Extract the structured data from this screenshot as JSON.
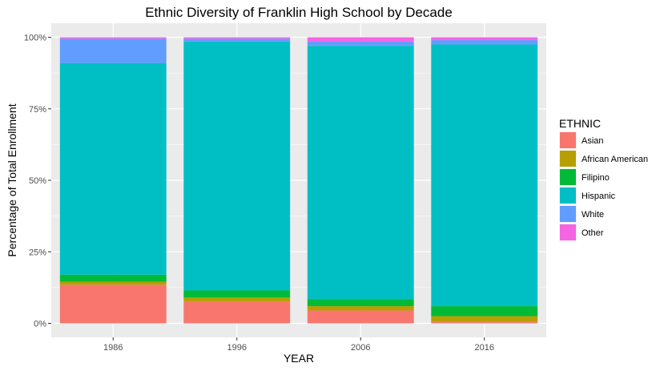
{
  "chart_data": {
    "type": "bar",
    "stacked": true,
    "title": "Ethnic Diversity of Franklin High School by Decade",
    "xlabel": "YEAR",
    "ylabel": "Percentage of Total Enrollment",
    "categories": [
      "1986",
      "1996",
      "2006",
      "2016"
    ],
    "ylim": [
      0,
      100
    ],
    "yticks": [
      "0%",
      "25%",
      "50%",
      "75%",
      "100%"
    ],
    "legend_title": "ETHNIC",
    "legend_position": "right",
    "grid": true,
    "series": [
      {
        "name": "Asian",
        "color": "#F8766D",
        "values": [
          13.5,
          7.5,
          4.5,
          0.5
        ]
      },
      {
        "name": "African American",
        "color": "#B79F00",
        "values": [
          1.0,
          1.5,
          1.5,
          2.0
        ]
      },
      {
        "name": "Filipino",
        "color": "#00BA38",
        "values": [
          2.5,
          2.5,
          2.5,
          3.5
        ]
      },
      {
        "name": "Hispanic",
        "color": "#00BFC4",
        "values": [
          74.0,
          87.0,
          88.5,
          91.5
        ]
      },
      {
        "name": "White",
        "color": "#619CFF",
        "values": [
          8.5,
          1.0,
          1.5,
          1.5
        ]
      },
      {
        "name": "Other",
        "color": "#F564E3",
        "values": [
          0.5,
          0.5,
          1.5,
          1.0
        ]
      }
    ]
  }
}
